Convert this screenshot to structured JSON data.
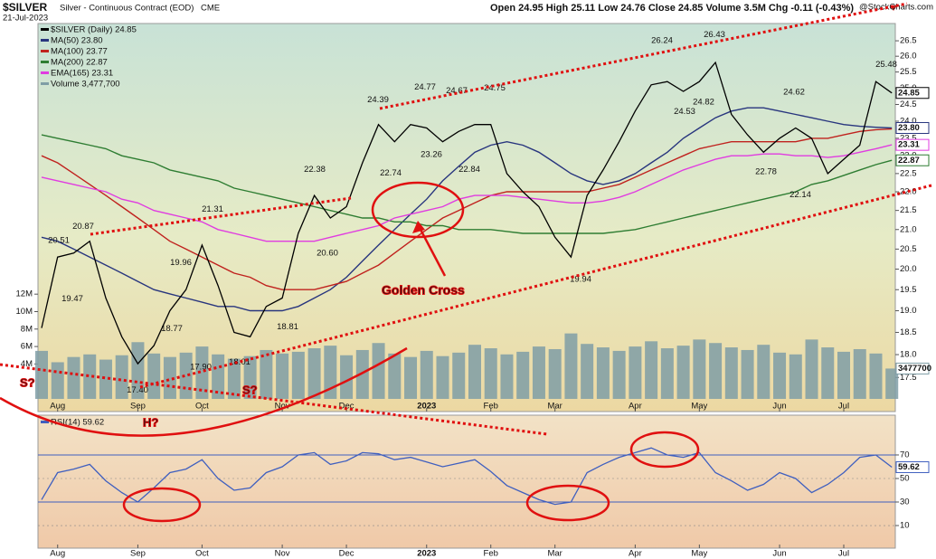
{
  "header": {
    "symbol": "$SILVER",
    "title": "Silver - Continuous Contract (EOD)",
    "exchange": "CME",
    "date": "21-Jul-2023",
    "quote": "Open 24.95 High 25.11 Low 24.76 Close 24.85 Volume 3.5M Chg -0.11 (-0.43%)",
    "credit": "@StockCharts.com"
  },
  "chart_data": [
    {
      "type": "line",
      "log_scale": true,
      "categories": [
        null,
        "Aug",
        null,
        null,
        null,
        null,
        "Sep",
        null,
        null,
        null,
        "Oct",
        null,
        null,
        null,
        null,
        "Nov",
        null,
        null,
        null,
        "Dec",
        null,
        null,
        null,
        null,
        "2023",
        null,
        null,
        null,
        "Feb",
        null,
        null,
        null,
        "Mar",
        null,
        null,
        null,
        null,
        "Apr",
        null,
        null,
        null,
        "May",
        null,
        null,
        null,
        null,
        "Jun",
        null,
        null,
        null,
        "Jul",
        null,
        null,
        null
      ],
      "ylim": [
        16.78,
        27.07
      ],
      "yticks": [
        17.5,
        {
          "value": 18,
          "label": "18.0"
        },
        18.5,
        {
          "value": 19,
          "label": "19.0"
        },
        19.5,
        {
          "value": 20,
          "label": "20.0"
        },
        20.5,
        {
          "value": 21,
          "label": "21.0"
        },
        21.5,
        {
          "value": 22,
          "label": "22.0"
        },
        22.5,
        {
          "value": 23,
          "label": "23.0"
        },
        23.5,
        {
          "value": 24,
          "label": "24.0"
        },
        24.5,
        {
          "value": 25,
          "label": "25.0"
        },
        25.5,
        {
          "value": 26,
          "label": "26.0"
        },
        26.5
      ],
      "y2lim": [
        -1450000,
        43000000
      ],
      "y2ticks": [
        {
          "value": 4000000,
          "label": "4M"
        },
        {
          "value": 6000000,
          "label": "6M"
        },
        {
          "value": 8000000,
          "label": "8M"
        },
        {
          "value": 10000000,
          "label": "10M"
        },
        {
          "value": 12000000,
          "label": "12M"
        }
      ],
      "series": [
        {
          "name": "$SILVER (Daily) 24.85",
          "color": "#000000",
          "tag": true,
          "values": [
            18.6,
            20.3,
            20.4,
            20.7,
            19.3,
            18.4,
            17.8,
            18.2,
            19.0,
            19.5,
            20.6,
            19.6,
            18.5,
            18.4,
            19.1,
            19.3,
            20.9,
            21.9,
            21.3,
            21.6,
            22.8,
            23.9,
            23.4,
            23.9,
            23.8,
            23.4,
            23.7,
            23.9,
            23.9,
            22.5,
            22.0,
            21.6,
            20.8,
            20.3,
            21.9,
            22.6,
            23.4,
            24.3,
            25.1,
            25.2,
            24.9,
            25.2,
            25.8,
            24.2,
            23.6,
            23.1,
            23.5,
            23.8,
            23.5,
            22.5,
            22.9,
            23.3,
            25.2,
            24.85
          ]
        },
        {
          "name": "MA(50) 23.80",
          "color": "#28357e",
          "tag": true,
          "last_label": "23.80",
          "values": [
            20.8,
            20.7,
            20.5,
            20.3,
            20.1,
            19.9,
            19.7,
            19.5,
            19.4,
            19.3,
            19.2,
            19.1,
            19.1,
            19.0,
            19.0,
            19.0,
            19.1,
            19.3,
            19.5,
            19.8,
            20.2,
            20.6,
            21.0,
            21.4,
            21.8,
            22.3,
            22.7,
            23.1,
            23.3,
            23.4,
            23.3,
            23.1,
            22.8,
            22.5,
            22.3,
            22.2,
            22.3,
            22.5,
            22.8,
            23.1,
            23.5,
            23.8,
            24.1,
            24.3,
            24.4,
            24.4,
            24.3,
            24.2,
            24.1,
            24.0,
            23.9,
            23.85,
            23.82,
            23.8
          ]
        },
        {
          "name": "MA(100) 23.77",
          "color": "#c0221e",
          "values": [
            23.0,
            22.8,
            22.5,
            22.2,
            21.9,
            21.6,
            21.3,
            21.0,
            20.7,
            20.5,
            20.3,
            20.1,
            19.9,
            19.8,
            19.6,
            19.5,
            19.5,
            19.5,
            19.6,
            19.7,
            19.9,
            20.1,
            20.4,
            20.7,
            21.0,
            21.3,
            21.5,
            21.7,
            21.9,
            22.0,
            22.0,
            22.0,
            22.0,
            22.0,
            22.0,
            22.1,
            22.2,
            22.4,
            22.6,
            22.8,
            23.0,
            23.2,
            23.3,
            23.4,
            23.4,
            23.4,
            23.4,
            23.4,
            23.5,
            23.5,
            23.6,
            23.7,
            23.75,
            23.77
          ]
        },
        {
          "name": "MA(200) 22.87",
          "color": "#2e7d32",
          "tag": true,
          "values": [
            23.6,
            23.5,
            23.4,
            23.3,
            23.2,
            23.0,
            22.9,
            22.8,
            22.6,
            22.5,
            22.4,
            22.3,
            22.1,
            22.0,
            21.9,
            21.8,
            21.7,
            21.6,
            21.5,
            21.4,
            21.3,
            21.3,
            21.2,
            21.2,
            21.1,
            21.1,
            21.0,
            21.0,
            21.0,
            20.95,
            20.9,
            20.9,
            20.9,
            20.9,
            20.9,
            20.9,
            20.95,
            21.0,
            21.1,
            21.2,
            21.3,
            21.4,
            21.5,
            21.6,
            21.7,
            21.8,
            21.9,
            22.0,
            22.2,
            22.3,
            22.45,
            22.6,
            22.75,
            22.87
          ]
        },
        {
          "name": "EMA(165) 23.31",
          "color": "#e03ce0",
          "tag": true,
          "values": [
            22.4,
            22.3,
            22.2,
            22.1,
            22.0,
            21.8,
            21.7,
            21.5,
            21.4,
            21.3,
            21.2,
            21.0,
            20.9,
            20.8,
            20.7,
            20.7,
            20.7,
            20.7,
            20.8,
            20.9,
            21.0,
            21.1,
            21.3,
            21.4,
            21.5,
            21.6,
            21.8,
            21.9,
            21.9,
            21.9,
            21.85,
            21.8,
            21.75,
            21.7,
            21.7,
            21.75,
            21.85,
            22.0,
            22.2,
            22.4,
            22.6,
            22.75,
            22.9,
            23.0,
            23.0,
            23.05,
            23.05,
            23.0,
            23.0,
            22.95,
            23.0,
            23.1,
            23.2,
            23.31
          ]
        },
        {
          "name": "Volume 3,477,700",
          "color": "#7f9ea6",
          "type": "bar",
          "axis": "y2",
          "tag": true,
          "values": [
            5500000,
            4200000,
            4800000,
            5100000,
            4500000,
            5000000,
            6500000,
            5200000,
            4800000,
            5300000,
            6000000,
            5100000,
            4600000,
            4900000,
            5600000,
            5200000,
            5400000,
            5800000,
            6100000,
            5000000,
            5600000,
            6400000,
            5200000,
            4800000,
            5500000,
            4900000,
            5300000,
            6200000,
            5800000,
            5100000,
            5400000,
            6000000,
            5700000,
            7500000,
            6300000,
            5900000,
            5500000,
            6000000,
            6600000,
            5800000,
            6100000,
            6800000,
            6400000,
            5900000,
            5600000,
            6200000,
            5300000,
            5100000,
            6800000,
            5900000,
            5400000,
            5700000,
            5200000,
            3477700
          ]
        }
      ],
      "price_labels": [
        20.51,
        20.87,
        19.47,
        {
          "value": 17.4,
          "label": "17.40"
        },
        18.77,
        19.96,
        21.31,
        {
          "value": 17.9,
          "label": "17.90"
        },
        18.01,
        18.81,
        {
          "value": 20.6,
          "label": "20.60"
        },
        22.38,
        24.39,
        22.74,
        24.77,
        23.26,
        24.67,
        22.84,
        24.75,
        19.94,
        26.24,
        26.43,
        24.53,
        24.82,
        22.78,
        24.62,
        22.14,
        25.48
      ],
      "annotations": [
        "Golden Cross",
        "S?",
        "S?",
        "H?"
      ]
    },
    {
      "type": "line",
      "categories": [
        null,
        "Aug",
        null,
        null,
        null,
        null,
        "Sep",
        null,
        null,
        null,
        "Oct",
        null,
        null,
        null,
        null,
        "Nov",
        null,
        null,
        null,
        "Dec",
        null,
        null,
        null,
        null,
        "2023",
        null,
        null,
        null,
        "Feb",
        null,
        null,
        null,
        "Mar",
        null,
        null,
        null,
        null,
        "Apr",
        null,
        null,
        null,
        "May",
        null,
        null,
        null,
        null,
        "Jun",
        null,
        null,
        null,
        "Jul",
        null,
        null,
        null
      ],
      "ylim": [
        -9.2,
        103.8
      ],
      "yticks": [
        10,
        30,
        50,
        70
      ],
      "levels": [
        30,
        70
      ],
      "series": [
        {
          "name": "RSI(14) 59.62",
          "color": "#3f5fbf",
          "tag": true,
          "values": [
            32,
            55,
            58,
            62,
            48,
            38,
            30,
            42,
            55,
            58,
            66,
            50,
            40,
            42,
            55,
            60,
            70,
            72,
            62,
            65,
            72,
            71,
            66,
            68,
            64,
            60,
            63,
            66,
            56,
            44,
            38,
            32,
            28,
            30,
            55,
            62,
            68,
            72,
            76,
            70,
            68,
            72,
            55,
            48,
            40,
            45,
            55,
            50,
            38,
            45,
            55,
            68,
            70,
            59.62
          ]
        }
      ]
    }
  ]
}
